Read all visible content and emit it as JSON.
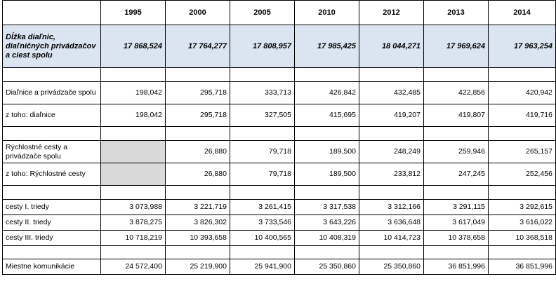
{
  "years": [
    "1995",
    "2000",
    "2005",
    "2010",
    "2012",
    "2013",
    "2014"
  ],
  "total": {
    "label": "Dĺžka diaľnic, diaľničných privádzačov a ciest spolu",
    "values": [
      "17 868,524",
      "17 764,277",
      "17 808,957",
      "17 985,425",
      "18 044,271",
      "17 969,624",
      "17 963,254"
    ]
  },
  "rows": [
    {
      "label": "Diaľnice a privádzače spolu",
      "values": [
        "198,042",
        "295,718",
        "333,713",
        "426,842",
        "432,485",
        "422,856",
        "420,942"
      ]
    },
    {
      "label": "z toho: diaľnice",
      "values": [
        "198,042",
        "295,718",
        "327,505",
        "415,695",
        "419,207",
        "419,807",
        "419,716"
      ]
    },
    {
      "label": "Rýchlostné cesty a privádzače spolu",
      "values": [
        "",
        "26,880",
        "79,718",
        "189,500",
        "248,249",
        "259,946",
        "265,157"
      ]
    },
    {
      "label": "z toho: Rýchlostné cesty",
      "values": [
        "",
        "26,880",
        "79,718",
        "189,500",
        "233,812",
        "247,245",
        "252,456"
      ]
    },
    {
      "label": "cesty I. triedy",
      "values": [
        "3 073,988",
        "3 221,719",
        "3 261,415",
        "3 317,538",
        "3 312,166",
        "3 291,115",
        "3 292,615"
      ]
    },
    {
      "label": "cesty II. triedy",
      "values": [
        "3 878,275",
        "3 826,302",
        "3 733,546",
        "3 643,226",
        "3 636,648",
        "3 617,049",
        "3 616,022"
      ]
    },
    {
      "label": "cesty III. triedy",
      "values": [
        "10 718,219",
        "10 393,658",
        "10 400,565",
        "10 408,319",
        "10 414,723",
        "10 378,658",
        "10 368,518"
      ]
    },
    {
      "label": "Miestne komunikácie",
      "values": [
        "24 572,400",
        "25 219,900",
        "25 941,900",
        "25 350,860",
        "25 350,860",
        "36 851,996",
        "36 851,996"
      ]
    }
  ]
}
